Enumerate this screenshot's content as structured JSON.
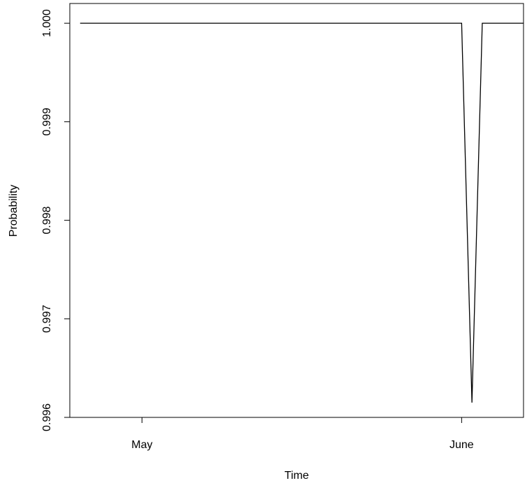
{
  "chart_data": {
    "type": "line",
    "title": "",
    "xlabel": "Time",
    "ylabel": "Probability",
    "x_ticks": [
      {
        "value": "2015-05-01",
        "label": "May"
      },
      {
        "value": "2015-06-01",
        "label": "June"
      }
    ],
    "y_ticks": [
      {
        "value": 0.996,
        "label": "0.996"
      },
      {
        "value": 0.997,
        "label": "0.997"
      },
      {
        "value": 0.998,
        "label": "0.998"
      },
      {
        "value": 0.999,
        "label": "0.999"
      },
      {
        "value": 1.0,
        "label": "1.000"
      }
    ],
    "xlim": [
      "2015-04-24",
      "2015-06-07"
    ],
    "ylim": [
      0.996,
      1.0002
    ],
    "grid": false,
    "legend": "none",
    "line_color": "#000000",
    "series": [
      {
        "x": [
          "2015-04-25",
          "2015-06-01",
          "2015-06-02",
          "2015-06-03",
          "2015-06-07"
        ],
        "y": [
          1.0,
          1.0,
          0.99615,
          1.0,
          1.0
        ]
      }
    ]
  }
}
